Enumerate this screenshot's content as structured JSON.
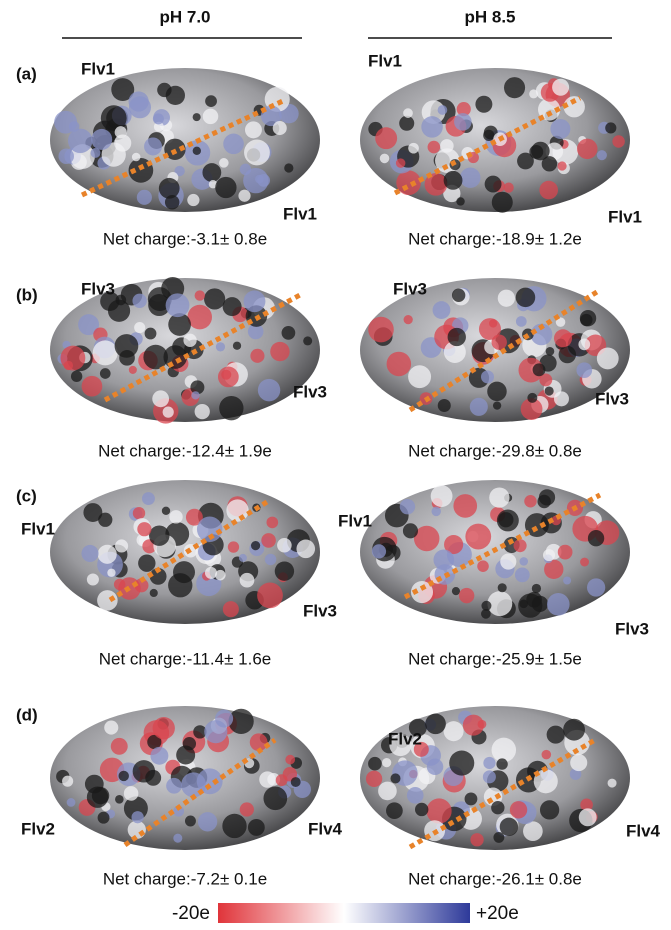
{
  "header": {
    "columns": [
      "pH 7.0",
      "pH 8.5"
    ]
  },
  "panels": [
    {
      "label": "(a)",
      "left": {
        "labels": [
          "Flv1",
          "Flv1"
        ],
        "charge": "Net charge:-3.1± 0.8e"
      },
      "right": {
        "labels": [
          "Flv1",
          "Flv1"
        ],
        "charge": "Net charge:-18.9± 1.2e"
      }
    },
    {
      "label": "(b)",
      "left": {
        "labels": [
          "Flv3",
          "Flv3"
        ],
        "charge": "Net charge:-12.4± 1.9e"
      },
      "right": {
        "labels": [
          "Flv3",
          "Flv3"
        ],
        "charge": "Net charge:-29.8± 0.8e"
      }
    },
    {
      "label": "(c)",
      "left": {
        "labels": [
          "Flv1",
          "Flv3"
        ],
        "charge": "Net charge:-11.4± 1.6e"
      },
      "right": {
        "labels": [
          "Flv1",
          "Flv3"
        ],
        "charge": "Net charge:-25.9± 1.5e"
      }
    },
    {
      "label": "(d)",
      "left": {
        "labels": [
          "Flv2",
          "Flv4"
        ],
        "charge": "Net charge:-7.2± 0.1e"
      },
      "right": {
        "labels": [
          "Flv2",
          "Flv4"
        ],
        "charge": "Net charge:-26.1± 0.8e"
      }
    }
  ],
  "colorbar": {
    "min_label": "-20e",
    "max_label": "+20e"
  }
}
